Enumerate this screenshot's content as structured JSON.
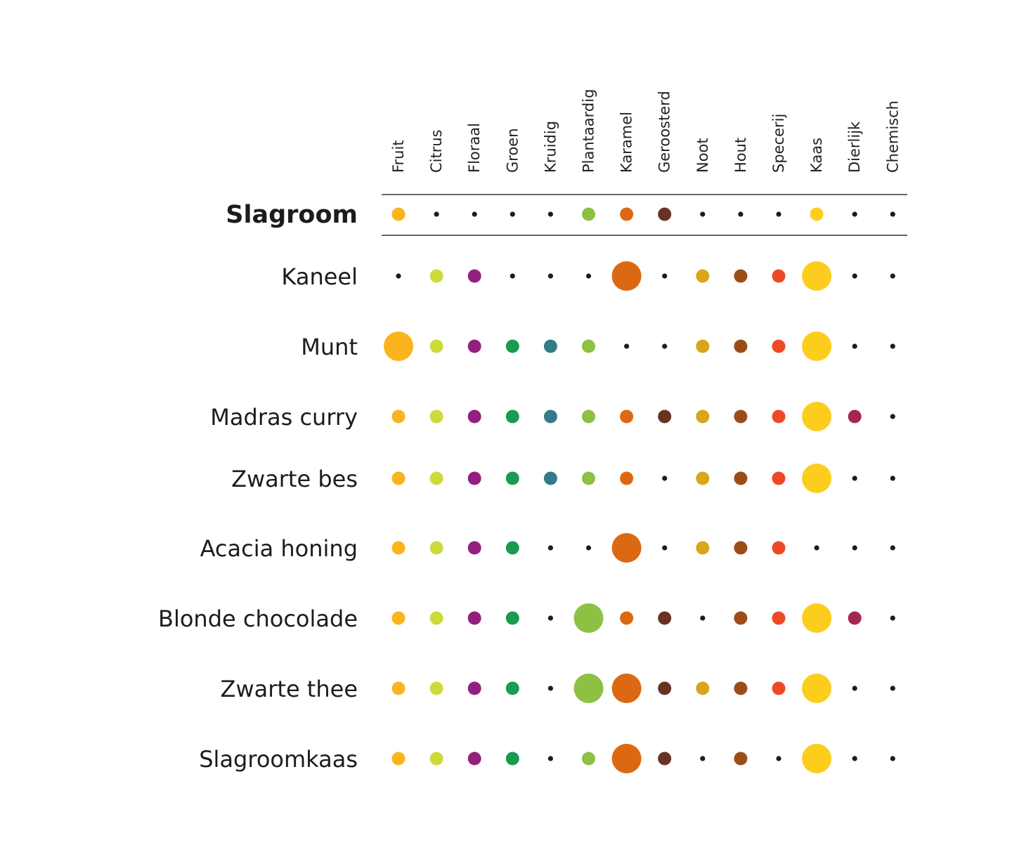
{
  "chart_data": {
    "type": "bubble-matrix",
    "columns": [
      "Fruit",
      "Citrus",
      "Floraal",
      "Groen",
      "Kruidig",
      "Plantaardig",
      "Karamel",
      "Geroosterd",
      "Noot",
      "Hout",
      "Specerij",
      "Kaas",
      "Dierlijk",
      "Chemisch"
    ],
    "colors": {
      "Fruit": "#FBB41E",
      "Citrus": "#CDDA3A",
      "Floraal": "#93207F",
      "Groen": "#1A9B50",
      "Kruidig": "#347B88",
      "Plantaardig": "#8DC043",
      "Karamel": "#DC6911",
      "Geroosterd": "#6A3223",
      "Noot": "#D9A51B",
      "Hout": "#9B4D19",
      "Specerij": "#EE4927",
      "Kaas": "#FDCD1E",
      "Dierlijk": "#A72651",
      "Chemisch": "#1c1c1c"
    },
    "dot_color": "#1c1c1c",
    "level_scale": "0 = absent (small black dot), 1 = present (small coloured dot), 2 = dominant (large coloured dot)",
    "featured_row": {
      "name": "Slagroom",
      "values": [
        1,
        0,
        0,
        0,
        0,
        1,
        1,
        1,
        0,
        0,
        0,
        1,
        0,
        0
      ]
    },
    "rows": [
      {
        "name": "Kaneel",
        "values": [
          0,
          1,
          1,
          0,
          0,
          0,
          2,
          0,
          1,
          1,
          1,
          2,
          0,
          0
        ]
      },
      {
        "name": "Munt",
        "values": [
          2,
          1,
          1,
          1,
          1,
          1,
          0,
          0,
          1,
          1,
          1,
          2,
          0,
          0
        ]
      },
      {
        "name": "Madras curry",
        "values": [
          1,
          1,
          1,
          1,
          1,
          1,
          1,
          1,
          1,
          1,
          1,
          2,
          1,
          0
        ]
      },
      {
        "name": "Zwarte bes",
        "values": [
          1,
          1,
          1,
          1,
          1,
          1,
          1,
          0,
          1,
          1,
          1,
          2,
          0,
          0
        ]
      },
      {
        "name": "Acacia honing",
        "values": [
          1,
          1,
          1,
          1,
          0,
          0,
          2,
          0,
          1,
          1,
          1,
          0,
          0,
          0
        ]
      },
      {
        "name": "Blonde chocolade",
        "values": [
          1,
          1,
          1,
          1,
          0,
          2,
          1,
          1,
          0,
          1,
          1,
          2,
          1,
          0
        ]
      },
      {
        "name": "Zwarte thee",
        "values": [
          1,
          1,
          1,
          1,
          0,
          2,
          2,
          1,
          1,
          1,
          1,
          2,
          0,
          0
        ]
      },
      {
        "name": "Slagroomkaas",
        "values": [
          1,
          1,
          1,
          1,
          0,
          1,
          2,
          1,
          0,
          1,
          0,
          2,
          0,
          0
        ]
      }
    ]
  }
}
